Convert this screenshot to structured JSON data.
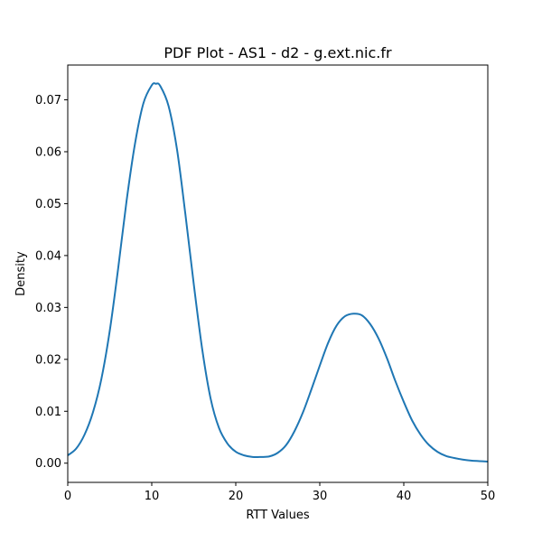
{
  "chart_data": {
    "type": "line",
    "title": "PDF Plot - AS1 - d2 - g.ext.nic.fr",
    "xlabel": "RTT Values",
    "ylabel": "Density",
    "xlim": [
      0,
      50
    ],
    "ylim": [
      -0.0037,
      0.0767
    ],
    "xticks": [
      0,
      10,
      20,
      30,
      40,
      50
    ],
    "xtick_labels": [
      "0",
      "10",
      "20",
      "30",
      "40",
      "50"
    ],
    "yticks": [
      0.0,
      0.01,
      0.02,
      0.03,
      0.04,
      0.05,
      0.06,
      0.07
    ],
    "ytick_labels": [
      "0.00",
      "0.01",
      "0.02",
      "0.03",
      "0.04",
      "0.05",
      "0.06",
      "0.07"
    ],
    "grid": false,
    "line_color": "#1f77b4",
    "series": [
      {
        "x": [
          0,
          1,
          2,
          3,
          4,
          5,
          6,
          7,
          8,
          9,
          10,
          10.5,
          11,
          12,
          13,
          14,
          15,
          16,
          17,
          18,
          19,
          20,
          21,
          22,
          23,
          24,
          25,
          26,
          27,
          28,
          29,
          30,
          31,
          32,
          33,
          34,
          35,
          36,
          37,
          38,
          39,
          40,
          41,
          42,
          43,
          44,
          45,
          46,
          47,
          48,
          49,
          50
        ],
        "y": [
          0.0015,
          0.0028,
          0.0055,
          0.0098,
          0.0162,
          0.0255,
          0.0375,
          0.0505,
          0.0615,
          0.0693,
          0.0728,
          0.0731,
          0.0727,
          0.0688,
          0.0605,
          0.048,
          0.0345,
          0.022,
          0.0125,
          0.0068,
          0.0038,
          0.0022,
          0.0015,
          0.0012,
          0.0012,
          0.0013,
          0.002,
          0.0035,
          0.0062,
          0.0098,
          0.0142,
          0.0188,
          0.0232,
          0.0265,
          0.0283,
          0.0288,
          0.0285,
          0.0268,
          0.024,
          0.0202,
          0.0158,
          0.0118,
          0.0082,
          0.0055,
          0.0035,
          0.0022,
          0.0014,
          0.001,
          0.0007,
          0.0005,
          0.0004,
          0.0003
        ]
      }
    ]
  }
}
